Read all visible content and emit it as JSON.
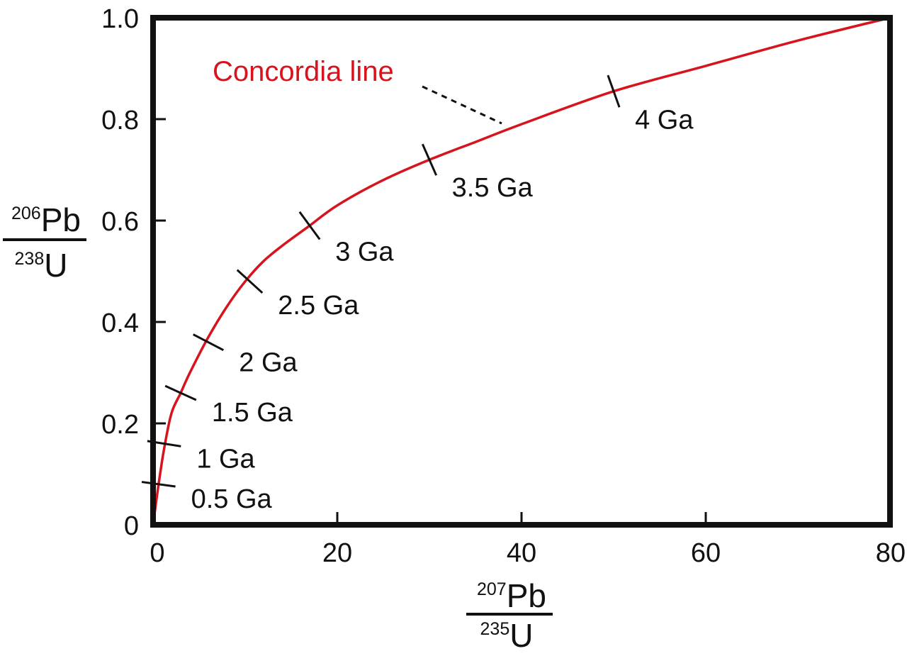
{
  "chart_data": {
    "type": "line",
    "x": [
      0,
      0.6,
      1.2,
      2,
      3,
      4,
      6,
      8,
      10,
      12,
      14,
      17,
      20,
      25,
      30,
      35,
      40,
      50,
      60,
      70,
      80
    ],
    "series": [
      {
        "name": "Concordia line",
        "values": [
          0,
          0.08,
          0.15,
          0.22,
          0.26,
          0.3,
          0.37,
          0.43,
          0.48,
          0.52,
          0.55,
          0.59,
          0.63,
          0.68,
          0.72,
          0.755,
          0.79,
          0.855,
          0.905,
          0.955,
          1.0
        ]
      }
    ],
    "age_markers": [
      {
        "label": "0.5 Ga",
        "x": 0.6,
        "y": 0.08
      },
      {
        "label": "1 Ga",
        "x": 1.2,
        "y": 0.16
      },
      {
        "label": "1.5 Ga",
        "x": 3.0,
        "y": 0.26
      },
      {
        "label": "2 Ga",
        "x": 6.0,
        "y": 0.36
      },
      {
        "label": "2.5 Ga",
        "x": 10.5,
        "y": 0.48
      },
      {
        "label": "3 Ga",
        "x": 17.0,
        "y": 0.59
      },
      {
        "label": "3.5 Ga",
        "x": 30.0,
        "y": 0.72
      },
      {
        "label": "4 Ga",
        "x": 50.0,
        "y": 0.855
      }
    ],
    "annotation": {
      "text": "Concordia line",
      "x": 38,
      "y": 0.79
    },
    "xticks": [
      0,
      20,
      40,
      60,
      80
    ],
    "xtick_labels": [
      "0",
      "20",
      "40",
      "60",
      "80"
    ],
    "yticks": [
      0,
      0.2,
      0.4,
      0.6,
      0.8,
      1.0
    ],
    "ytick_labels": [
      "0",
      "0.2",
      "0.4",
      "0.6",
      "0.8",
      "1.0"
    ],
    "xlim": [
      0,
      80
    ],
    "ylim": [
      0,
      1.0
    ],
    "xlabel": {
      "numerator_sup": "207",
      "numerator": "Pb",
      "denominator_sup": "235",
      "denominator": "U"
    },
    "ylabel": {
      "numerator_sup": "206",
      "numerator": "Pb",
      "denominator_sup": "238",
      "denominator": "U"
    },
    "grid": false,
    "colors": {
      "curve": "#d7141e",
      "axes": "#111111",
      "annotation_text": "#d7141e"
    }
  }
}
